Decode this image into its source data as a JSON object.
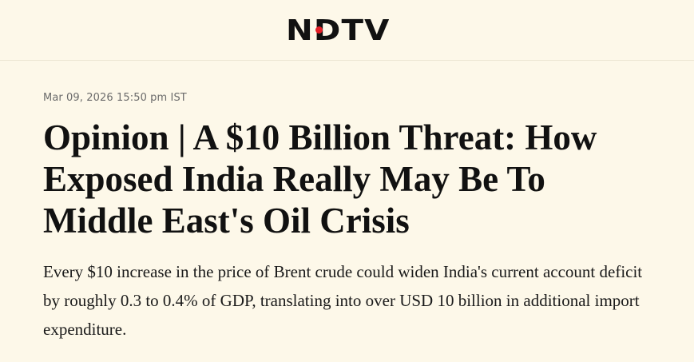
{
  "header": {
    "logo_text": "NDTV",
    "logo_dot_color": "#e41e26"
  },
  "article": {
    "dateline": "Mar 09, 2026 15:50 pm IST",
    "headline": "Opinion | A $10 Billion Threat: How Exposed India Really May Be To Middle East's Oil Crisis",
    "summary": "Every $10 increase in the price of Brent crude could widen India's current account deficit by roughly 0.3 to 0.4% of GDP, translating into over USD 10 billion in additional import expenditure."
  }
}
